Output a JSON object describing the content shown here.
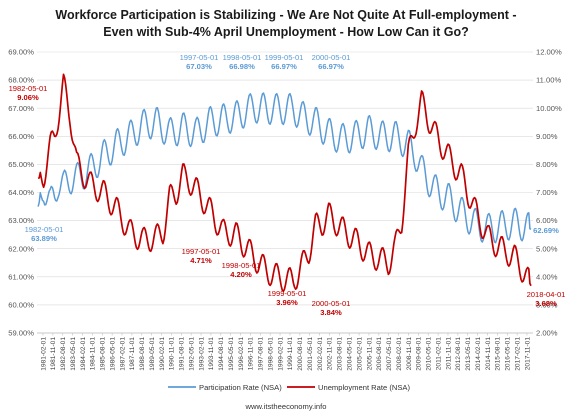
{
  "chart_data": {
    "type": "line",
    "title_lines": [
      "Workforce Participation is Stabilizing  - We Are Not Quite At Full-employment -",
      "Even with Sub-4%  April Unemployment - How Low Can it Go?"
    ],
    "y_left": {
      "min": 59,
      "max": 69,
      "step": 1,
      "tick_labels": [
        "59.00%",
        "60.00%",
        "61.00%",
        "62.00%",
        "63.00%",
        "64.00%",
        "65.00%",
        "66.00%",
        "67.00%",
        "68.00%",
        "69.00%"
      ]
    },
    "y_right": {
      "min": 2,
      "max": 12,
      "step": 1,
      "tick_labels": [
        "2.00%",
        "3.00%",
        "4.00%",
        "5.00%",
        "6.00%",
        "7.00%",
        "8.00%",
        "9.00%",
        "10.00%",
        "11.00%",
        "12.00%"
      ]
    },
    "x_tick_labels": [
      "1981-02-01",
      "1981-11-01",
      "1982-08-01",
      "1983-05-01",
      "1984-02-01",
      "1984-11-01",
      "1985-08-01",
      "1986-05-01",
      "1987-02-01",
      "1987-11-01",
      "1988-08-01",
      "1989-05-01",
      "1990-02-01",
      "1990-11-01",
      "1991-08-01",
      "1992-05-01",
      "1993-02-01",
      "1993-11-01",
      "1994-08-01",
      "1995-05-01",
      "1996-02-01",
      "1996-11-01",
      "1997-08-01",
      "1998-05-01",
      "1999-02-01",
      "1999-11-01",
      "2000-08-01",
      "2001-05-01",
      "2002-02-01",
      "2002-11-01",
      "2003-08-01",
      "2004-05-01",
      "2005-02-01",
      "2005-11-01",
      "2006-08-01",
      "2007-05-01",
      "2008-02-01",
      "2008-11-01",
      "2009-08-01",
      "2010-05-01",
      "2011-02-01",
      "2011-11-01",
      "2012-08-01",
      "2013-05-01",
      "2014-02-01",
      "2014-11-01",
      "2015-08-01",
      "2016-05-01",
      "2017-02-01",
      "2017-11-01"
    ],
    "series": [
      {
        "name": "Participation Rate (NSA)",
        "axis": "left",
        "color": "#5b9bd5",
        "x": [
          1981.08,
          1981.5,
          1982.0,
          1982.33,
          1982.6,
          1983.0,
          1983.5,
          1984.0,
          1985.0,
          1986.0,
          1987.0,
          1988.0,
          1989.0,
          1990.0,
          1991.0,
          1992.0,
          1993.0,
          1994.0,
          1995.0,
          1996.0,
          1997.33,
          1998.33,
          1999.33,
          2000.33,
          2001.0,
          2002.0,
          2003.0,
          2004.0,
          2005.0,
          2006.0,
          2007.0,
          2008.0,
          2009.0,
          2009.5,
          2010.0,
          2011.0,
          2012.0,
          2013.0,
          2014.0,
          2015.0,
          2016.0,
          2017.0,
          2017.8,
          2018.25
        ],
        "y": [
          63.5,
          64.2,
          63.6,
          63.89,
          64.4,
          64.2,
          64.5,
          64.5,
          64.8,
          65.3,
          65.7,
          66.0,
          66.4,
          66.5,
          66.1,
          66.3,
          66.1,
          66.5,
          66.6,
          66.7,
          67.03,
          66.98,
          66.97,
          66.97,
          66.7,
          66.5,
          66.1,
          65.9,
          66.0,
          66.2,
          66.0,
          66.0,
          65.7,
          65.4,
          64.8,
          64.1,
          63.8,
          63.3,
          62.9,
          62.7,
          62.8,
          62.9,
          62.8,
          62.69
        ]
      },
      {
        "name": "Unemployment Rate (NSA)",
        "axis": "right",
        "color": "#c00000",
        "x": [
          1981.08,
          1981.5,
          1982.0,
          1982.33,
          1982.7,
          1983.0,
          1983.5,
          1984.0,
          1985.0,
          1986.0,
          1987.0,
          1988.0,
          1989.0,
          1990.0,
          1990.5,
          1991.0,
          1991.5,
          1992.0,
          1992.5,
          1993.0,
          1994.0,
          1995.0,
          1996.0,
          1997.33,
          1998.33,
          1999.33,
          2000.33,
          2001.0,
          2001.5,
          2002.0,
          2002.5,
          2003.0,
          2004.0,
          2005.0,
          2006.0,
          2007.0,
          2007.5,
          2008.0,
          2008.5,
          2009.0,
          2009.5,
          2010.0,
          2011.0,
          2012.0,
          2013.0,
          2014.0,
          2015.0,
          2016.0,
          2017.0,
          2017.8,
          2018.25
        ],
        "y": [
          7.5,
          7.6,
          8.6,
          9.06,
          10.0,
          10.8,
          9.8,
          8.0,
          7.3,
          7.0,
          6.4,
          5.6,
          5.3,
          5.4,
          5.6,
          6.8,
          7.0,
          7.6,
          7.4,
          7.1,
          6.4,
          5.6,
          5.5,
          4.71,
          4.2,
          3.96,
          3.84,
          4.4,
          4.9,
          5.8,
          5.9,
          6.2,
          5.7,
          5.3,
          4.8,
          4.6,
          4.5,
          5.0,
          6.0,
          8.3,
          9.4,
          10.2,
          9.1,
          8.3,
          7.6,
          6.4,
          5.4,
          5.0,
          4.7,
          4.1,
          3.68
        ]
      }
    ],
    "annotations": [
      {
        "series": "Participation Rate (NSA)",
        "date": "1982-05-01",
        "value": "63.89%"
      },
      {
        "series": "Participation Rate (NSA)",
        "date": "1997-05-01",
        "value": "67.03%"
      },
      {
        "series": "Participation Rate (NSA)",
        "date": "1998-05-01",
        "value": "66.98%"
      },
      {
        "series": "Participation Rate (NSA)",
        "date": "1999-05-01",
        "value": "66.97%"
      },
      {
        "series": "Participation Rate (NSA)",
        "date": "2000-05-01",
        "value": "66.97%"
      },
      {
        "series": "Participation Rate (NSA)",
        "date": "",
        "value": "62.69%"
      },
      {
        "series": "Unemployment Rate (NSA)",
        "date": "1982-05-01",
        "value": "9.06%"
      },
      {
        "series": "Unemployment Rate (NSA)",
        "date": "1997-05-01",
        "value": "4.71%"
      },
      {
        "series": "Unemployment Rate (NSA)",
        "date": "1998-05-01",
        "value": "4.20%"
      },
      {
        "series": "Unemployment Rate (NSA)",
        "date": "1999-05-01",
        "value": "3.96%"
      },
      {
        "series": "Unemployment Rate (NSA)",
        "date": "2000-05-01",
        "value": "3.84%"
      },
      {
        "series": "Unemployment Rate (NSA)",
        "date": "2018-04-01",
        "value": "3.68%"
      }
    ],
    "grid": true,
    "legend_position": "bottom",
    "footer": "www.itstheeconomy.info"
  }
}
